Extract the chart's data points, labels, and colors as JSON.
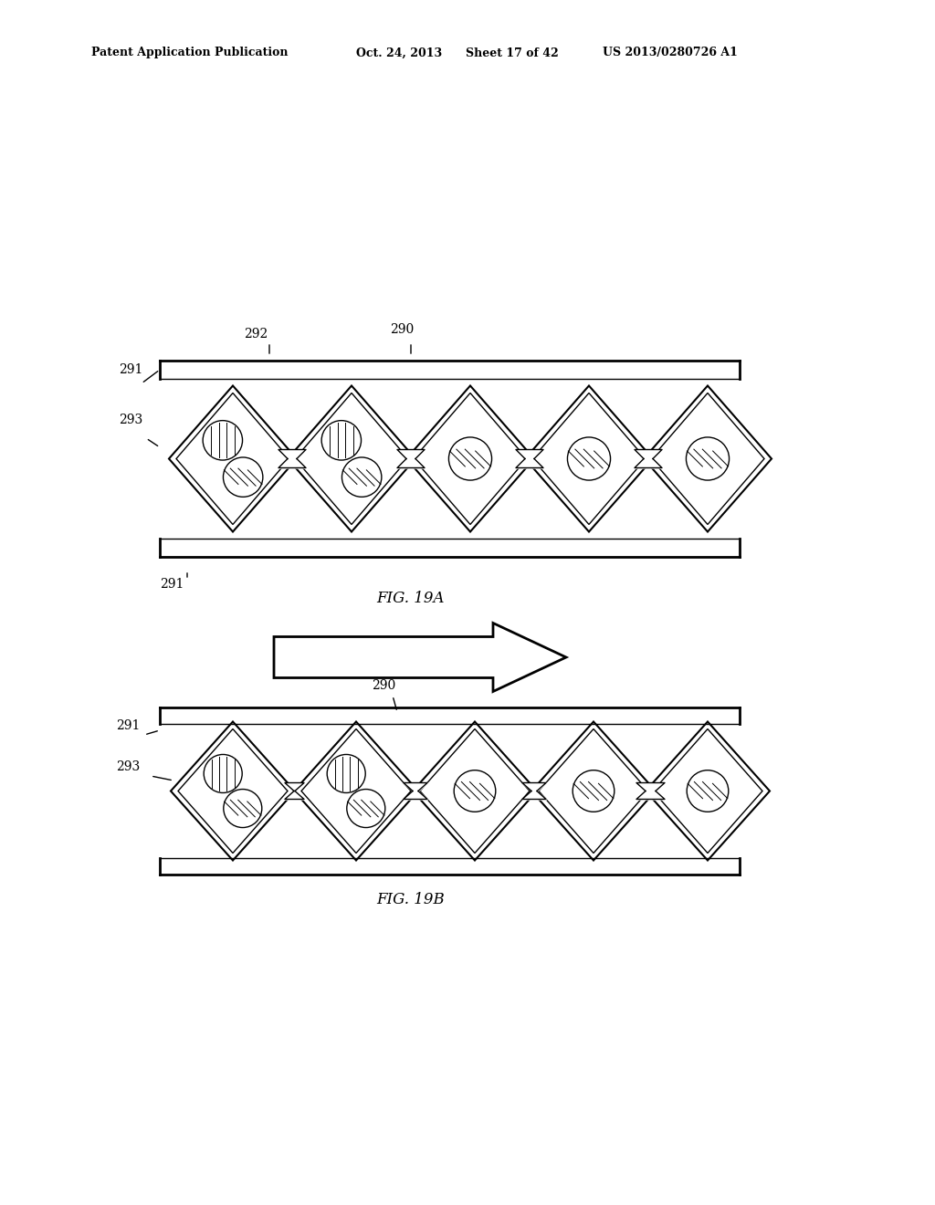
{
  "bg_color": "#ffffff",
  "header_text": "Patent Application Publication",
  "header_date": "Oct. 24, 2013",
  "header_sheet": "Sheet 17 of 42",
  "header_patent": "US 2013/0280726 A1",
  "fig19a_label": "FIG. 19A",
  "fig19b_label": "FIG. 19B",
  "label_291": "291",
  "label_292": "292",
  "label_290a": "290",
  "label_293a": "293",
  "label_290b": "290",
  "label_291b": "291",
  "label_293b": "293"
}
